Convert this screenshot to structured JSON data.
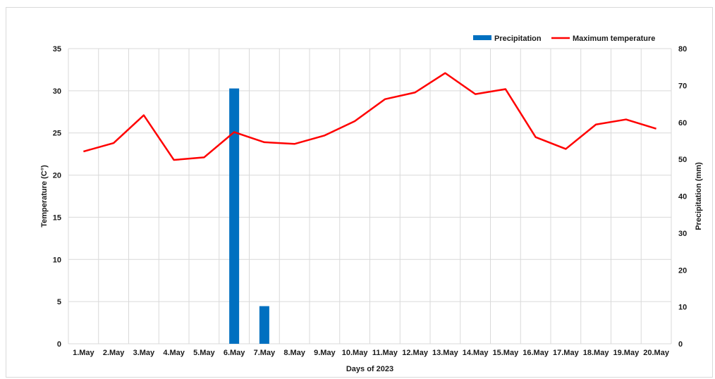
{
  "chart_data": {
    "type": "bar+line",
    "categories": [
      "1.May",
      "2.May",
      "3.May",
      "4.May",
      "5.May",
      "6.May",
      "7.May",
      "8.May",
      "9.May",
      "10.May",
      "11.May",
      "12.May",
      "13.May",
      "14.May",
      "15.May",
      "16.May",
      "17.May",
      "18.May",
      "19.May",
      "20.May"
    ],
    "series": [
      {
        "name": "Precipitation",
        "type": "bar",
        "axis": "right",
        "color": "#0070c0",
        "values": [
          0,
          0,
          0,
          0,
          0,
          69.2,
          10.2,
          0,
          0,
          0,
          0,
          0,
          0,
          0,
          0,
          0,
          0,
          0,
          0,
          0
        ]
      },
      {
        "name": "Maximum temperature",
        "type": "line",
        "axis": "left",
        "color": "#ff0000",
        "values": [
          22.8,
          23.8,
          27.1,
          21.8,
          22.1,
          25.1,
          23.9,
          23.7,
          24.7,
          26.4,
          29.0,
          29.8,
          32.1,
          29.6,
          30.2,
          24.5,
          23.1,
          26.0,
          26.6,
          25.5
        ]
      }
    ],
    "xlabel": "Days of 2023",
    "ylabel_left": "Temperature (C°)",
    "ylabel_right": "Precipitation (mm)",
    "ylim_left": [
      0,
      35
    ],
    "yticks_left": [
      0,
      5,
      10,
      15,
      20,
      25,
      30,
      35
    ],
    "ylim_right": [
      0,
      80
    ],
    "yticks_right": [
      0,
      10,
      20,
      30,
      40,
      50,
      60,
      70,
      80
    ],
    "grid": true,
    "legend_position": "top-right"
  }
}
